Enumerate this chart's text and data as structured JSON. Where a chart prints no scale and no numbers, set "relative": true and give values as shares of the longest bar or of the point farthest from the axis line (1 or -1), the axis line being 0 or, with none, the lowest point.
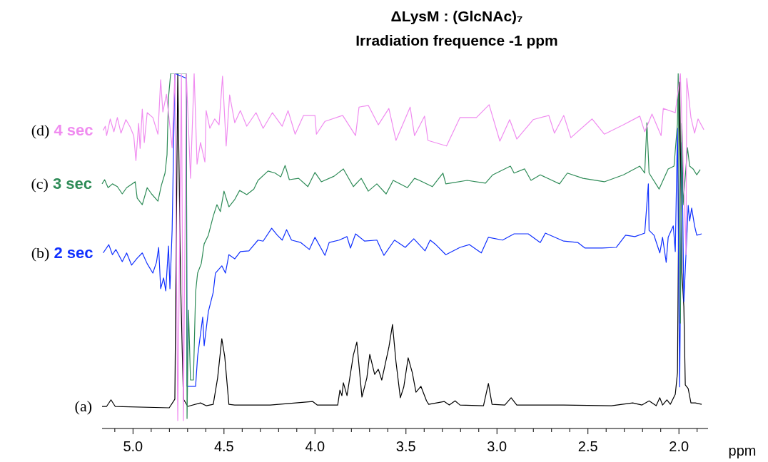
{
  "chart_data": {
    "type": "line",
    "title": "ΔLysM : (GlcNAc)₇",
    "subtitle": "Irradiation frequence -1 ppm",
    "xlabel": "ppm",
    "relative": true,
    "xlim": [
      5.17,
      1.84
    ],
    "xticks": [
      {
        "value": 5.1,
        "label": null
      },
      {
        "value": 5,
        "label": "5.0"
      },
      {
        "value": 4.9,
        "label": null
      },
      {
        "value": 4.8,
        "label": null
      },
      {
        "value": 4.7,
        "label": null
      },
      {
        "value": 4.6,
        "label": null
      },
      {
        "value": 4.5,
        "label": "4.5"
      },
      {
        "value": 4.4,
        "label": null
      },
      {
        "value": 4.3,
        "label": null
      },
      {
        "value": 4.2,
        "label": null
      },
      {
        "value": 4.1,
        "label": null
      },
      {
        "value": 4,
        "label": "4.0"
      },
      {
        "value": 3.9,
        "label": null
      },
      {
        "value": 3.8,
        "label": null
      },
      {
        "value": 3.7,
        "label": null
      },
      {
        "value": 3.6,
        "label": null
      },
      {
        "value": 3.5,
        "label": "3.5"
      },
      {
        "value": 3.4,
        "label": null
      },
      {
        "value": 3.3,
        "label": null
      },
      {
        "value": 3.2,
        "label": null
      },
      {
        "value": 3.1,
        "label": null
      },
      {
        "value": 3,
        "label": "3.0"
      },
      {
        "value": 2.9,
        "label": null
      },
      {
        "value": 2.8,
        "label": null
      },
      {
        "value": 2.7,
        "label": null
      },
      {
        "value": 2.6,
        "label": null
      },
      {
        "value": 2.5,
        "label": "2.5"
      },
      {
        "value": 2.4,
        "label": null
      },
      {
        "value": 2.3,
        "label": null
      },
      {
        "value": 2.2,
        "label": null
      },
      {
        "value": 2.1,
        "label": null
      },
      {
        "value": 2,
        "label": "2.0"
      },
      {
        "value": 1.9,
        "label": null
      }
    ],
    "series": [
      {
        "name": "(a)",
        "color": "#000000",
        "x": [
          5.17,
          5.145,
          5.121,
          5.098,
          4.801,
          4.77,
          4.754,
          4.738,
          4.723,
          4.699,
          4.629,
          4.598,
          4.559,
          4.535,
          4.512,
          4.496,
          4.473,
          4.441,
          4.246,
          4.012,
          3.988,
          3.875,
          3.863,
          3.852,
          3.844,
          3.824,
          3.789,
          3.77,
          3.742,
          3.715,
          3.699,
          3.672,
          3.652,
          3.633,
          3.594,
          3.574,
          3.555,
          3.531,
          3.512,
          3.488,
          3.465,
          3.445,
          3.418,
          3.387,
          3.375,
          3.289,
          3.262,
          3.23,
          3.203,
          3.074,
          3.047,
          3.027,
          2.957,
          2.922,
          2.891,
          2.633,
          2.371,
          2.254,
          2.203,
          2.164,
          2.125,
          2.105,
          2.09,
          2.066,
          2.047,
          2.02,
          2.008,
          1.996,
          1.984,
          1.973,
          1.965,
          1.949,
          1.934,
          1.91,
          1.875
        ],
        "values": [
          0.041,
          0.041,
          0.06,
          0.041,
          0.037,
          0.062,
          1.0,
          0.39,
          0.062,
          0.041,
          0.051,
          0.043,
          0.047,
          0.123,
          0.236,
          0.185,
          0.047,
          0.045,
          0.045,
          0.055,
          0.045,
          0.045,
          0.088,
          0.072,
          0.109,
          0.072,
          0.189,
          0.226,
          0.068,
          0.123,
          0.191,
          0.133,
          0.148,
          0.117,
          0.211,
          0.277,
          0.17,
          0.066,
          0.097,
          0.181,
          0.138,
          0.082,
          0.099,
          0.057,
          0.047,
          0.055,
          0.045,
          0.057,
          0.045,
          0.043,
          0.107,
          0.047,
          0.045,
          0.066,
          0.045,
          0.045,
          0.043,
          0.051,
          0.045,
          0.057,
          0.043,
          0.066,
          0.045,
          0.06,
          0.047,
          0.076,
          0.138,
          0.975,
          0.431,
          0.329,
          0.103,
          0.092,
          0.051,
          0.051,
          0.047
        ]
      },
      {
        "name": "(b) 2 sec",
        "color": "#1030ff",
        "x": [
          5.164,
          5.133,
          5.113,
          5.094,
          5.059,
          5.035,
          5.008,
          4.977,
          4.949,
          4.922,
          4.891,
          4.871,
          4.859,
          4.848,
          4.832,
          4.82,
          4.805,
          4.797,
          4.785,
          4.77,
          4.707,
          4.703,
          4.656,
          4.645,
          4.617,
          4.609,
          4.586,
          4.559,
          4.547,
          4.512,
          4.492,
          4.473,
          4.441,
          4.41,
          4.363,
          4.313,
          4.285,
          4.238,
          4.207,
          4.18,
          4.156,
          4.129,
          4.078,
          4.031,
          4.0,
          3.945,
          3.922,
          3.867,
          3.824,
          3.805,
          3.777,
          3.727,
          3.66,
          3.621,
          3.563,
          3.504,
          3.457,
          3.395,
          3.367,
          3.336,
          3.281,
          3.203,
          3.152,
          3.086,
          3.047,
          2.969,
          2.906,
          2.828,
          2.762,
          2.734,
          2.633,
          2.555,
          2.516,
          2.422,
          2.344,
          2.293,
          2.242,
          2.188,
          2.168,
          2.164,
          2.137,
          2.105,
          2.09,
          2.07,
          2.059,
          2.031,
          2.02,
          2.008,
          1.996,
          1.984,
          1.973,
          1.949,
          1.941,
          1.93,
          1.914,
          1.902,
          1.875
        ],
        "values": [
          0.483,
          0.507,
          0.478,
          0.493,
          0.458,
          0.483,
          0.448,
          0.468,
          0.483,
          0.452,
          0.425,
          0.456,
          0.499,
          0.38,
          0.411,
          0.374,
          0.503,
          0.38,
          0.548,
          1.0,
          0.986,
          0.099,
          0.099,
          0.185,
          0.298,
          0.216,
          0.314,
          0.37,
          0.425,
          0.446,
          0.425,
          0.478,
          0.466,
          0.487,
          0.489,
          0.52,
          0.517,
          0.554,
          0.534,
          0.52,
          0.55,
          0.52,
          0.513,
          0.493,
          0.528,
          0.476,
          0.513,
          0.52,
          0.53,
          0.497,
          0.538,
          0.517,
          0.52,
          0.476,
          0.52,
          0.499,
          0.524,
          0.489,
          0.52,
          0.507,
          0.478,
          0.499,
          0.507,
          0.483,
          0.528,
          0.52,
          0.538,
          0.538,
          0.513,
          0.54,
          0.517,
          0.513,
          0.497,
          0.497,
          0.499,
          0.534,
          0.53,
          0.54,
          0.682,
          0.548,
          0.534,
          0.483,
          0.528,
          0.456,
          0.528,
          0.561,
          0.487,
          0.842,
          0.097,
          0.801,
          0.343,
          0.62,
          0.575,
          0.612,
          0.561,
          0.534,
          0.538
        ]
      },
      {
        "name": "(c) 3 sec",
        "color": "#2e8b57",
        "x": [
          5.17,
          5.156,
          5.137,
          5.113,
          5.086,
          5.059,
          5.035,
          4.988,
          4.977,
          4.949,
          4.922,
          4.898,
          4.863,
          4.844,
          4.824,
          4.813,
          4.805,
          4.793,
          4.707,
          4.703,
          4.695,
          4.684,
          4.668,
          4.656,
          4.645,
          4.625,
          4.609,
          4.586,
          4.559,
          4.539,
          4.52,
          4.5,
          4.473,
          4.441,
          4.414,
          4.375,
          4.336,
          4.313,
          4.258,
          4.219,
          4.188,
          4.164,
          4.141,
          4.09,
          4.039,
          4.0,
          3.965,
          3.895,
          3.844,
          3.789,
          3.746,
          3.707,
          3.66,
          3.609,
          3.57,
          3.492,
          3.453,
          3.426,
          3.355,
          3.297,
          3.281,
          3.164,
          3.063,
          3.023,
          2.926,
          2.906,
          2.848,
          2.813,
          2.762,
          2.656,
          2.613,
          2.527,
          2.41,
          2.305,
          2.215,
          2.188,
          2.176,
          2.164,
          2.109,
          2.059,
          2.027,
          2.008,
          2.004,
          1.992,
          1.984,
          1.977,
          1.953,
          1.941,
          1.922,
          1.902,
          1.883
        ],
        "values": [
          0.682,
          0.694,
          0.671,
          0.682,
          0.674,
          0.653,
          0.671,
          0.688,
          0.641,
          0.622,
          0.671,
          0.653,
          0.632,
          0.678,
          0.713,
          0.766,
          0.93,
          1.0,
          1.0,
          0.006,
          0.318,
          0.117,
          0.117,
          0.37,
          0.425,
          0.452,
          0.509,
          0.534,
          0.589,
          0.622,
          0.602,
          0.661,
          0.616,
          0.637,
          0.663,
          0.651,
          0.667,
          0.692,
          0.719,
          0.713,
          0.702,
          0.735,
          0.694,
          0.698,
          0.674,
          0.715,
          0.688,
          0.704,
          0.725,
          0.674,
          0.698,
          0.661,
          0.682,
          0.653,
          0.692,
          0.671,
          0.698,
          0.692,
          0.674,
          0.713,
          0.682,
          0.692,
          0.684,
          0.708,
          0.733,
          0.713,
          0.725,
          0.692,
          0.708,
          0.682,
          0.713,
          0.698,
          0.688,
          0.708,
          0.733,
          0.713,
          0.858,
          0.713,
          0.667,
          0.725,
          0.733,
          0.856,
          1.0,
          0.281,
          0.856,
          0.622,
          0.786,
          0.733,
          0.725,
          0.708,
          0.723
        ]
      },
      {
        "name": "(d) 4 sec",
        "color": "#f08cf0",
        "x": [
          5.164,
          5.152,
          5.145,
          5.125,
          5.105,
          5.086,
          5.066,
          5.039,
          5.016,
          4.996,
          4.984,
          4.969,
          4.961,
          4.949,
          4.938,
          4.922,
          4.891,
          4.863,
          4.848,
          4.836,
          4.816,
          4.785,
          4.77,
          4.754,
          4.734,
          4.723,
          4.707,
          4.684,
          4.664,
          4.648,
          4.629,
          4.605,
          4.598,
          4.578,
          4.551,
          4.527,
          4.508,
          4.488,
          4.469,
          4.441,
          4.41,
          4.375,
          4.324,
          4.285,
          4.234,
          4.18,
          4.148,
          4.109,
          4.063,
          4.0,
          3.992,
          3.945,
          3.848,
          3.777,
          3.758,
          3.707,
          3.652,
          3.594,
          3.555,
          3.477,
          3.453,
          3.398,
          3.379,
          3.277,
          3.203,
          3.113,
          3.043,
          2.984,
          2.93,
          2.891,
          2.801,
          2.715,
          2.684,
          2.633,
          2.594,
          2.477,
          2.41,
          2.305,
          2.215,
          2.188,
          2.148,
          2.098,
          2.086,
          2.02,
          1.992,
          1.961,
          1.957,
          1.934,
          1.914,
          1.895,
          1.863
        ],
        "values": [
          0.836,
          0.848,
          0.821,
          0.869,
          0.832,
          0.873,
          0.828,
          0.867,
          0.846,
          0.821,
          0.749,
          0.856,
          0.784,
          0.897,
          0.801,
          0.887,
          0.873,
          0.825,
          0.982,
          0.889,
          0.94,
          0.786,
          1.0,
          0,
          1.0,
          0,
          1.0,
          0.698,
          1.0,
          0.739,
          0.801,
          0.745,
          0.893,
          0.842,
          0.869,
          0.852,
          0.992,
          0.791,
          0.938,
          0.858,
          0.893,
          0.848,
          0.887,
          0.842,
          0.887,
          0.848,
          0.893,
          0.825,
          0.879,
          0.879,
          0.825,
          0.862,
          0.879,
          0.821,
          0.903,
          0.908,
          0.852,
          0.899,
          0.807,
          0.903,
          0.821,
          0.877,
          0.807,
          0.791,
          0.873,
          0.873,
          0.91,
          0.805,
          0.867,
          0.811,
          0.867,
          0.879,
          0.828,
          0.879,
          0.815,
          0.869,
          0.825,
          0.852,
          0.877,
          0.832,
          0.883,
          0.821,
          0.899,
          0.887,
          1.0,
          0.478,
          0.986,
          0.873,
          0.828,
          0.869,
          0.838
        ]
      }
    ]
  }
}
